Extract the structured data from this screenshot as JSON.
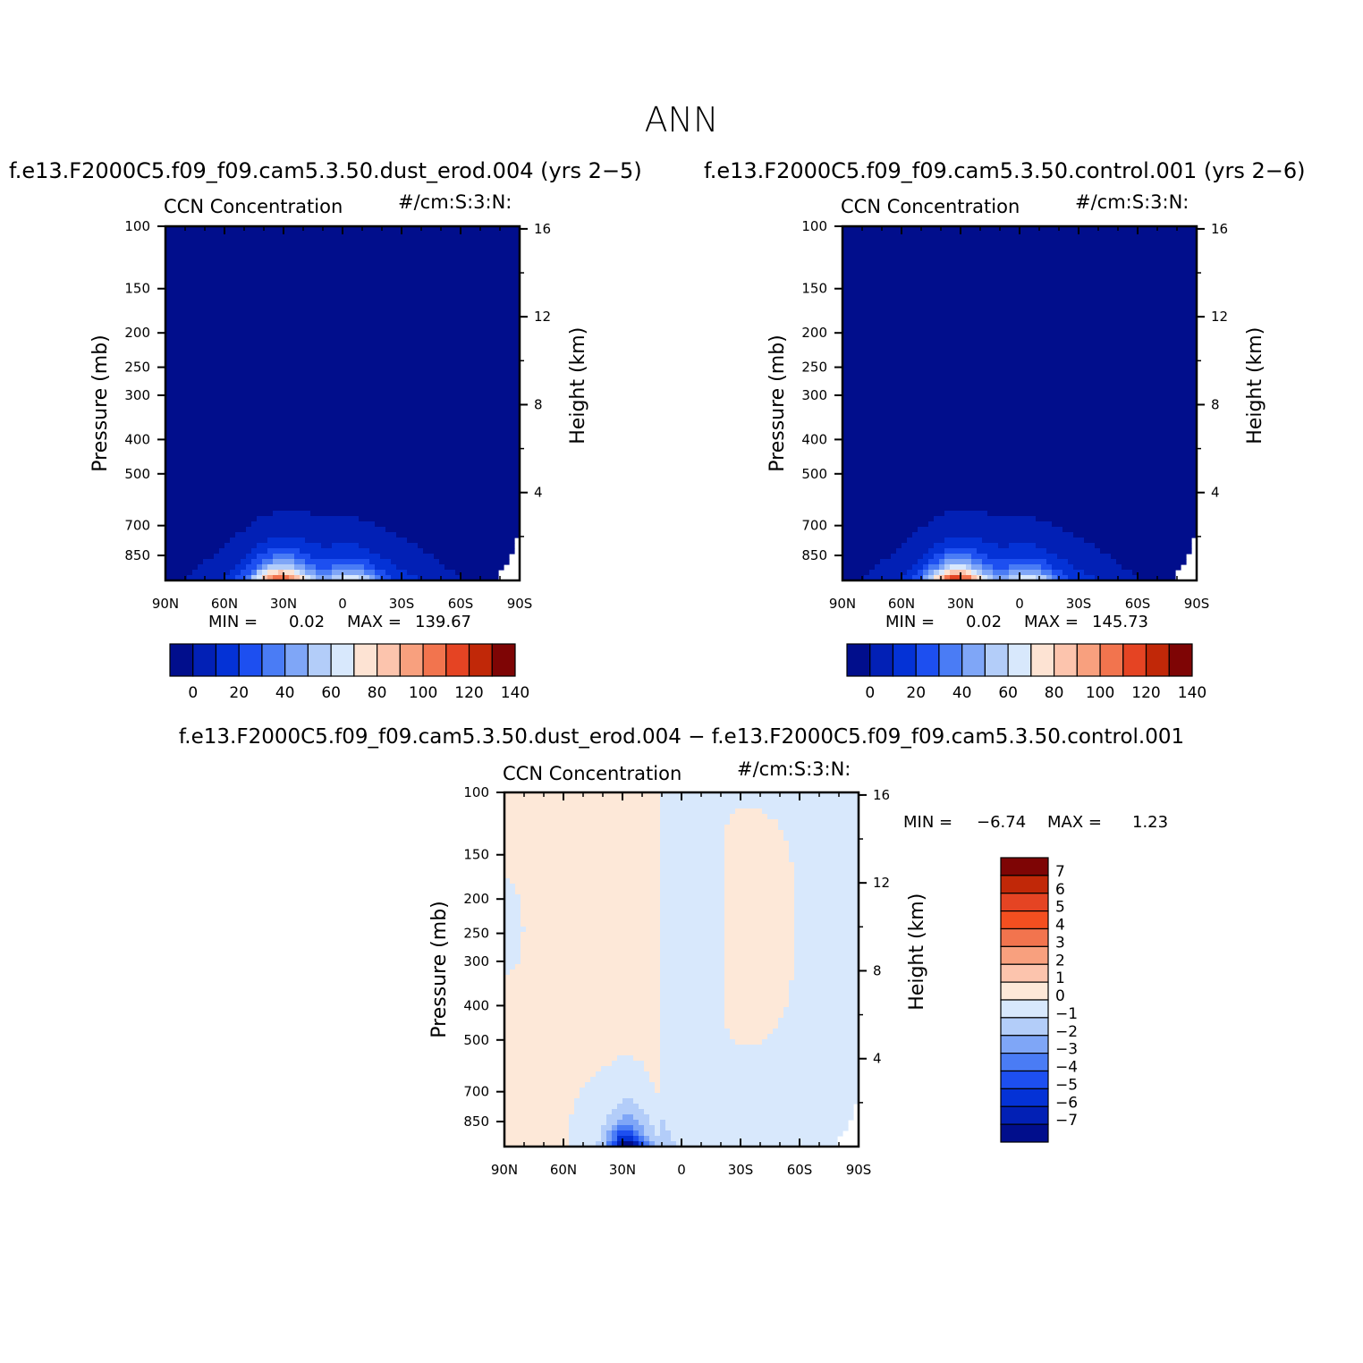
{
  "figure": {
    "title": "ANN",
    "diff_title": "f.e13.F2000C5.f09_f09.cam5.3.50.dust_erod.004 − f.e13.F2000C5.f09_f09.cam5.3.50.control.001"
  },
  "colors": {
    "abs_palette": [
      "#010e8c",
      "#0220b5",
      "#0432d6",
      "#1d4ff0",
      "#4a7cf5",
      "#7fa6f7",
      "#b3cdf9",
      "#d8e8fc",
      "#fde3d3",
      "#fcc4ad",
      "#f8a07e",
      "#f2744e",
      "#e54423",
      "#c12808",
      "#7e0505"
    ],
    "diff_palette": [
      "#7e0505",
      "#c12808",
      "#e54423",
      "#f44f20",
      "#f2744e",
      "#f8a07e",
      "#fcc4ad",
      "#fde8d8",
      "#d8e8fc",
      "#b3cdf9",
      "#7fa6f7",
      "#4a7cf5",
      "#1d4ff0",
      "#0432d6",
      "#0220b5",
      "#010e8c"
    ]
  },
  "chart_data": [
    {
      "id": "left",
      "type": "heatmap",
      "case_title": "f.e13.F2000C5.f09_f09.cam5.3.50.dust_erod.004 (yrs 2−5)",
      "var_title": "CCN Concentration",
      "units": "#/cm:S:3:N:",
      "xlabel": "",
      "ylabel": "Pressure (mb)",
      "y2label": "Height (km)",
      "x_ticks": [
        "90N",
        "60N",
        "30N",
        "0",
        "30S",
        "60S",
        "90S"
      ],
      "y_ticks": [
        "100",
        "150",
        "200",
        "250",
        "300",
        "400",
        "500",
        "700",
        "850"
      ],
      "y2_ticks": [
        "16",
        "12",
        "8",
        "4"
      ],
      "min_label": "MIN =",
      "min_value": "0.02",
      "max_label": "MAX =",
      "max_value": "139.67",
      "colorbar_labels": [
        "0",
        "20",
        "40",
        "60",
        "80",
        "100",
        "120",
        "140"
      ],
      "levels": [
        0,
        10,
        20,
        30,
        40,
        50,
        60,
        70,
        80,
        90,
        100,
        110,
        120,
        130,
        140
      ],
      "peak": {
        "lat": 30,
        "pressure_mb": 1000,
        "value": 139.67
      }
    },
    {
      "id": "right",
      "type": "heatmap",
      "case_title": "f.e13.F2000C5.f09_f09.cam5.3.50.control.001 (yrs 2−6)",
      "var_title": "CCN Concentration",
      "units": "#/cm:S:3:N:",
      "xlabel": "",
      "ylabel": "Pressure (mb)",
      "y2label": "Height (km)",
      "x_ticks": [
        "90N",
        "60N",
        "30N",
        "0",
        "30S",
        "60S",
        "90S"
      ],
      "y_ticks": [
        "100",
        "150",
        "200",
        "250",
        "300",
        "400",
        "500",
        "700",
        "850"
      ],
      "y2_ticks": [
        "16",
        "12",
        "8",
        "4"
      ],
      "min_label": "MIN =",
      "min_value": "0.02",
      "max_label": "MAX =",
      "max_value": "145.73",
      "colorbar_labels": [
        "0",
        "20",
        "40",
        "60",
        "80",
        "100",
        "120",
        "140"
      ],
      "levels": [
        0,
        10,
        20,
        30,
        40,
        50,
        60,
        70,
        80,
        90,
        100,
        110,
        120,
        130,
        140
      ],
      "peak": {
        "lat": 30,
        "pressure_mb": 1000,
        "value": 145.73
      }
    },
    {
      "id": "diff",
      "type": "heatmap",
      "var_title": "CCN Concentration",
      "units": "#/cm:S:3:N:",
      "xlabel": "",
      "ylabel": "Pressure (mb)",
      "y2label": "Height (km)",
      "x_ticks": [
        "90N",
        "60N",
        "30N",
        "0",
        "30S",
        "60S",
        "90S"
      ],
      "y_ticks": [
        "100",
        "150",
        "200",
        "250",
        "300",
        "400",
        "500",
        "700",
        "850"
      ],
      "y2_ticks": [
        "16",
        "12",
        "8",
        "4"
      ],
      "min_label": "MIN =",
      "min_value": "−6.74",
      "max_label": "MAX =",
      "max_value": "1.23",
      "colorbar_labels": [
        "7",
        "6",
        "5",
        "4",
        "3",
        "2",
        "1",
        "0",
        "−1",
        "−2",
        "−3",
        "−4",
        "−5",
        "−6",
        "−7"
      ],
      "levels": [
        -7,
        -6,
        -5,
        -4,
        -3,
        -2,
        -1,
        0,
        1,
        2,
        3,
        4,
        5,
        6,
        7
      ],
      "min_location": {
        "lat": 30,
        "pressure_mb": 950
      }
    }
  ]
}
